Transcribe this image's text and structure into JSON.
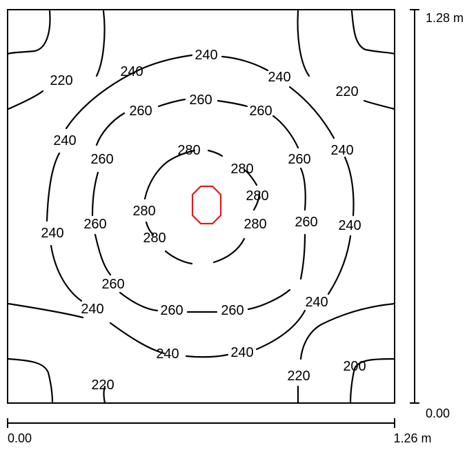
{
  "plan": {
    "x_axis": {
      "start_label": "0.00",
      "end_label": "1.26 m"
    },
    "y_axis": {
      "top_label": "1.28 m",
      "bottom_label": "0.00"
    }
  },
  "contour_labels": [
    "240",
    "220",
    "240",
    "240",
    "220",
    "260",
    "260",
    "260",
    "240",
    "260",
    "280",
    "260",
    "240",
    "280",
    "280",
    "280",
    "280",
    "240",
    "260",
    "280",
    "260",
    "240",
    "260",
    "240",
    "260",
    "260",
    "240",
    "240",
    "240",
    "200",
    "220",
    "220"
  ],
  "colors": {
    "contour": "#000000",
    "max_marker": "#e31a1c"
  }
}
